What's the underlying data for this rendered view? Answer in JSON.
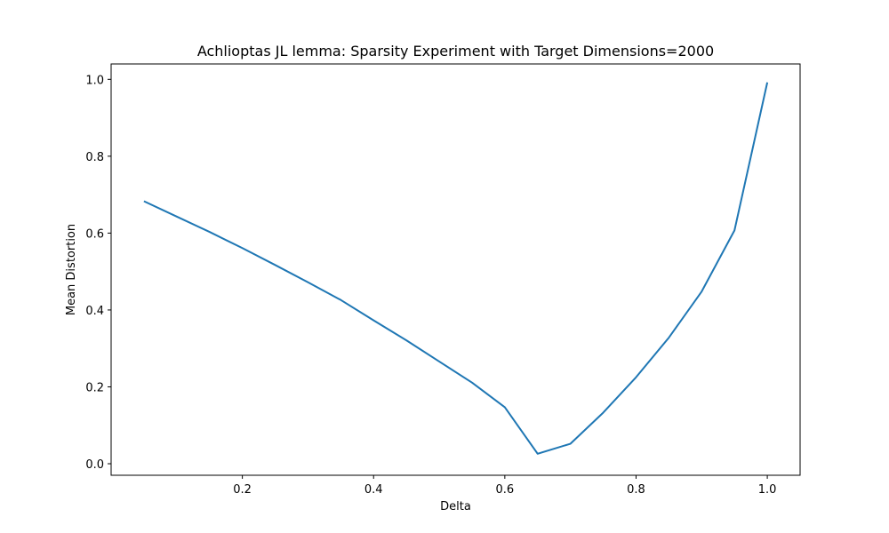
{
  "chart_data": {
    "type": "line",
    "title": "Achlioptas JL lemma: Sparsity Experiment with Target Dimensions=2000",
    "xlabel": "Delta",
    "ylabel": "Mean Distortion",
    "xlim": [
      0.0,
      1.05
    ],
    "ylim": [
      -0.03,
      1.04
    ],
    "x_ticks": [
      0.2,
      0.4,
      0.6,
      0.8,
      1.0
    ],
    "y_ticks": [
      0.0,
      0.2,
      0.4,
      0.6,
      0.8,
      1.0
    ],
    "x_tick_labels": [
      "0.2",
      "0.4",
      "0.6",
      "0.8",
      "1.0"
    ],
    "y_tick_labels": [
      "0.0",
      "0.2",
      "0.4",
      "0.6",
      "0.8",
      "1.0"
    ],
    "grid": false,
    "series": [
      {
        "color": "#1f77b4",
        "x": [
          0.05,
          0.1,
          0.15,
          0.2,
          0.25,
          0.3,
          0.35,
          0.4,
          0.45,
          0.5,
          0.55,
          0.6,
          0.65,
          0.7,
          0.75,
          0.8,
          0.85,
          0.9,
          0.95,
          1.0
        ],
        "y": [
          0.683,
          0.643,
          0.603,
          0.561,
          0.517,
          0.472,
          0.426,
          0.373,
          0.321,
          0.266,
          0.211,
          0.147,
          0.026,
          0.052,
          0.133,
          0.225,
          0.328,
          0.448,
          0.607,
          0.992
        ]
      }
    ]
  }
}
